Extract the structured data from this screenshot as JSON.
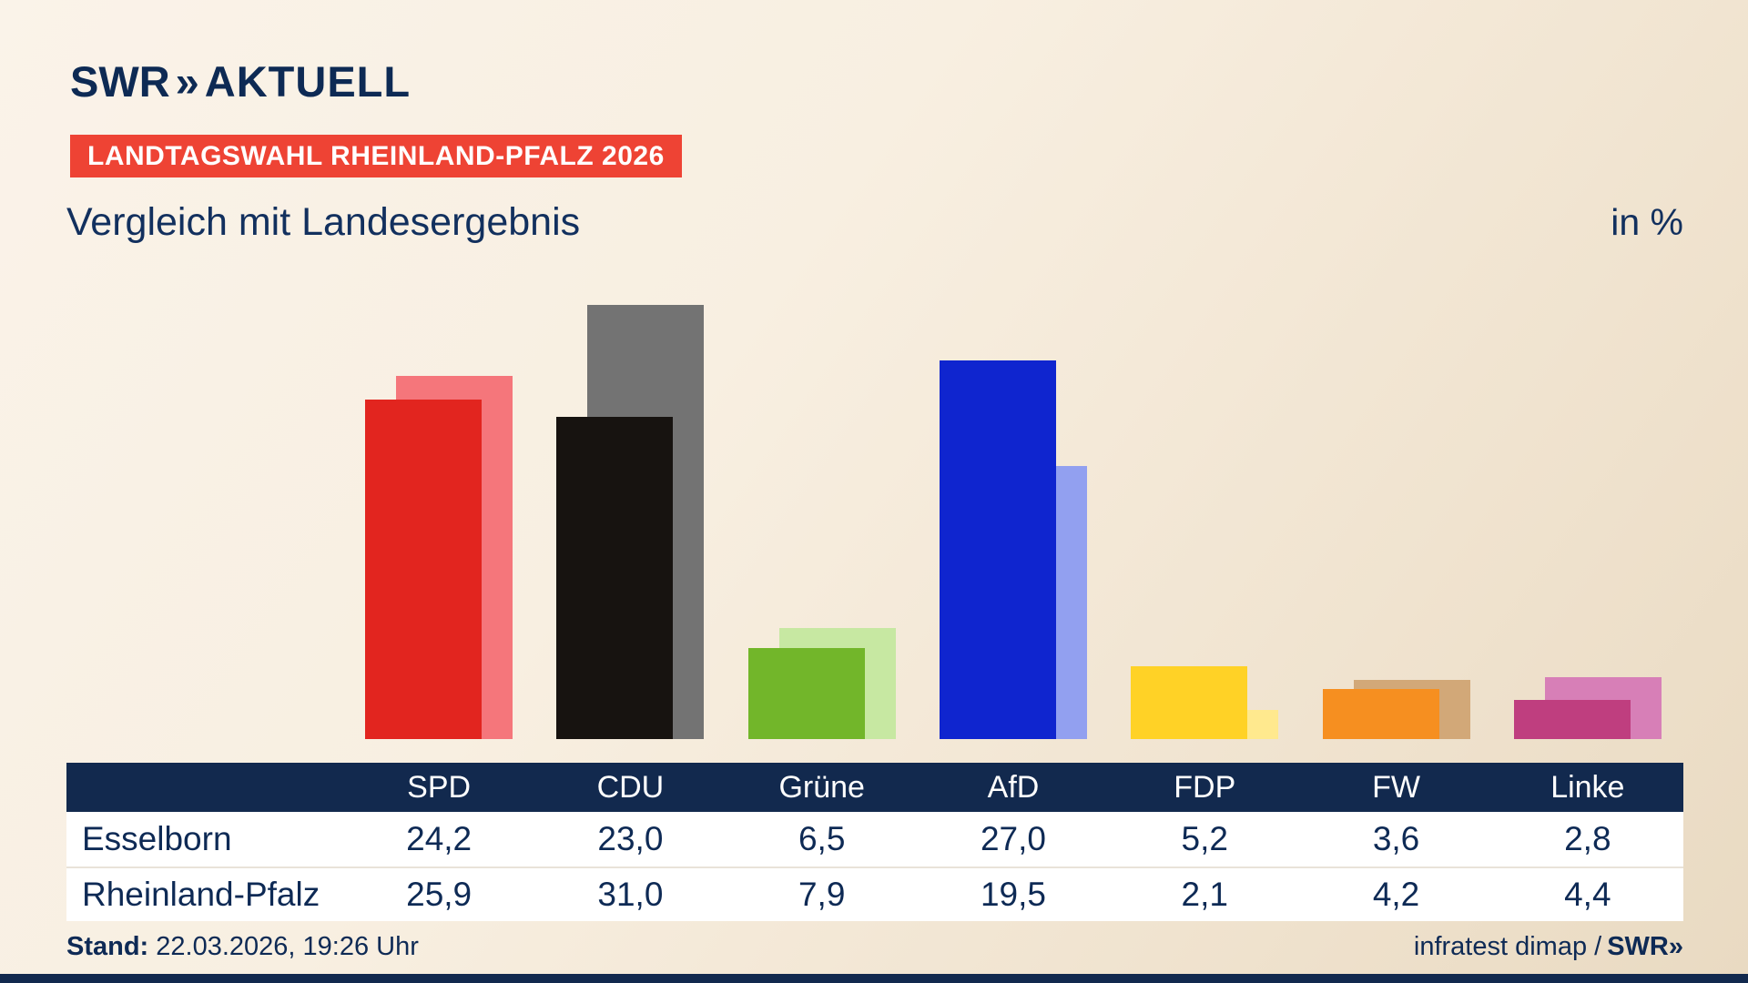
{
  "brand": {
    "swr": "SWR",
    "chevrons": "»",
    "aktuell": "AKTUELL"
  },
  "badge": "LANDTAGSWAHL RHEINLAND-PFALZ 2026",
  "title": "Vergleich mit Landesergebnis",
  "unit_label": "in %",
  "chart_data": {
    "type": "bar",
    "title": "Vergleich mit Landesergebnis",
    "unit": "%",
    "categories": [
      "SPD",
      "CDU",
      "Grüne",
      "AfD",
      "FDP",
      "FW",
      "Linke"
    ],
    "series": [
      {
        "name": "Esselborn",
        "values": [
          24.2,
          23.0,
          6.5,
          27.0,
          5.2,
          3.6,
          2.8
        ]
      },
      {
        "name": "Rheinland-Pfalz",
        "values": [
          25.9,
          31.0,
          7.9,
          19.5,
          2.1,
          4.2,
          4.4
        ]
      }
    ],
    "colors_front": [
      "#e2251f",
      "#171310",
      "#72b62a",
      "#0f25cf",
      "#ffd226",
      "#f68f20",
      "#bf3e7f"
    ],
    "colors_back": [
      "#f5767b",
      "#737373",
      "#c7e8a2",
      "#92a0f0",
      "#ffe98e",
      "#d2a878",
      "#d77fb7"
    ],
    "ylim": [
      0,
      33
    ],
    "grid": false,
    "legend": "table-below"
  },
  "table": {
    "rows": [
      {
        "label": "Esselborn",
        "values": [
          "24,2",
          "23,0",
          "6,5",
          "27,0",
          "5,2",
          "3,6",
          "2,8"
        ]
      },
      {
        "label": "Rheinland-Pfalz",
        "values": [
          "25,9",
          "31,0",
          "7,9",
          "19,5",
          "2,1",
          "4,2",
          "4,4"
        ]
      }
    ]
  },
  "footer": {
    "stand_label": "Stand:",
    "stand_value": " 22.03.2026, 19:26 Uhr",
    "source_text": "infratest dimap /",
    "source_brand": "SWR»"
  },
  "colors": {
    "navy": "#12294e",
    "badge_red": "#ee4334",
    "background_top": "#faf3e9",
    "background_bottom": "#e9dac2"
  }
}
